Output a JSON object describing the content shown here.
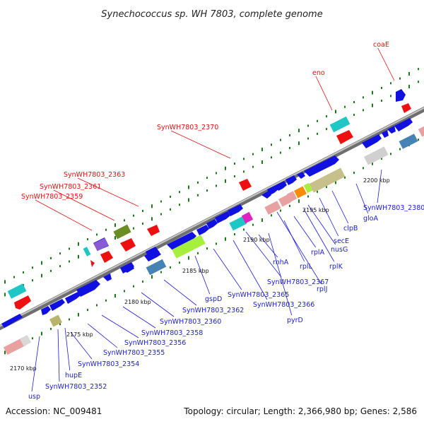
{
  "title": "Synechococcus sp. WH 7803, complete genome",
  "footer": {
    "accession": "Accession: NC_009481",
    "summary": "Topology: circular; Length: 2,366,980 bp; Genes: 2,586"
  },
  "colors": {
    "backbone": "#8a8a8a",
    "gene_blue": "#1010e0",
    "red_label": "#e01010",
    "blue_label": "#1a1adb",
    "tick_green": "#1a7a1a"
  },
  "kbp_labels": [
    {
      "text": "2170 kbp"
    },
    {
      "text": "2175 kbp"
    },
    {
      "text": "2180 kbp"
    },
    {
      "text": "2185 kbp"
    },
    {
      "text": "2190 kbp"
    },
    {
      "text": "2195 kbp"
    },
    {
      "text": "2200 kbp"
    }
  ],
  "labels_blue": [
    {
      "text": "usp"
    },
    {
      "text": "SynWH7803_2352"
    },
    {
      "text": "hupE"
    },
    {
      "text": "SynWH7803_2354"
    },
    {
      "text": "SynWH7803_2355"
    },
    {
      "text": "SynWH7803_2356"
    },
    {
      "text": "SynWH7803_2358"
    },
    {
      "text": "SynWH7803_2360"
    },
    {
      "text": "SynWH7803_2362"
    },
    {
      "text": "gspD"
    },
    {
      "text": "SynWH7803_2365"
    },
    {
      "text": "SynWH7803_2366"
    },
    {
      "text": "SynWH7803_2367"
    },
    {
      "text": "pyrD"
    },
    {
      "text": "rnhA"
    },
    {
      "text": "rplL"
    },
    {
      "text": "rplJ"
    },
    {
      "text": "rplA"
    },
    {
      "text": "rplK"
    },
    {
      "text": "nusG"
    },
    {
      "text": "secE"
    },
    {
      "text": "clpB"
    },
    {
      "text": "gloA"
    },
    {
      "text": "SynWH7803_2380"
    }
  ],
  "labels_red": [
    {
      "text": "SynWH7803_2359"
    },
    {
      "text": "SynWH7803_2361"
    },
    {
      "text": "SynWH7803_2363"
    },
    {
      "text": "SynWH7803_2370"
    },
    {
      "text": "eno"
    },
    {
      "text": "coaE"
    }
  ]
}
